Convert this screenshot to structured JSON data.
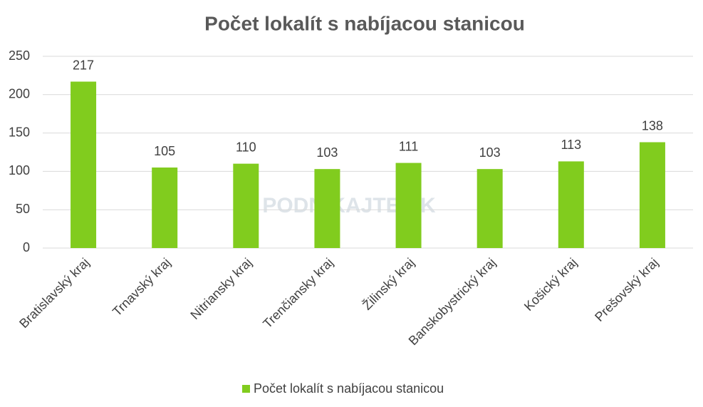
{
  "chart_data": {
    "type": "bar",
    "title": "Počet lokalít s nabíjacou stanicou",
    "categories": [
      "Bratislavský kraj",
      "Trnavský kraj",
      "Nitriansky kraj",
      "Trenčiansky kraj",
      "Žilinský kraj",
      "Banskobystrický kraj",
      "Košický kraj",
      "Prešovský kraj"
    ],
    "series": [
      {
        "name": "Počet lokalít s nabíjacou stanicou",
        "color": "#81cc1e",
        "values": [
          217,
          105,
          110,
          103,
          111,
          103,
          113,
          138
        ]
      }
    ],
    "ylim": [
      0,
      250
    ],
    "yticks": [
      0,
      50,
      100,
      150,
      200,
      250
    ],
    "grid": true,
    "legend": "bottom",
    "watermark": "PODNIKAJTE.SK"
  }
}
